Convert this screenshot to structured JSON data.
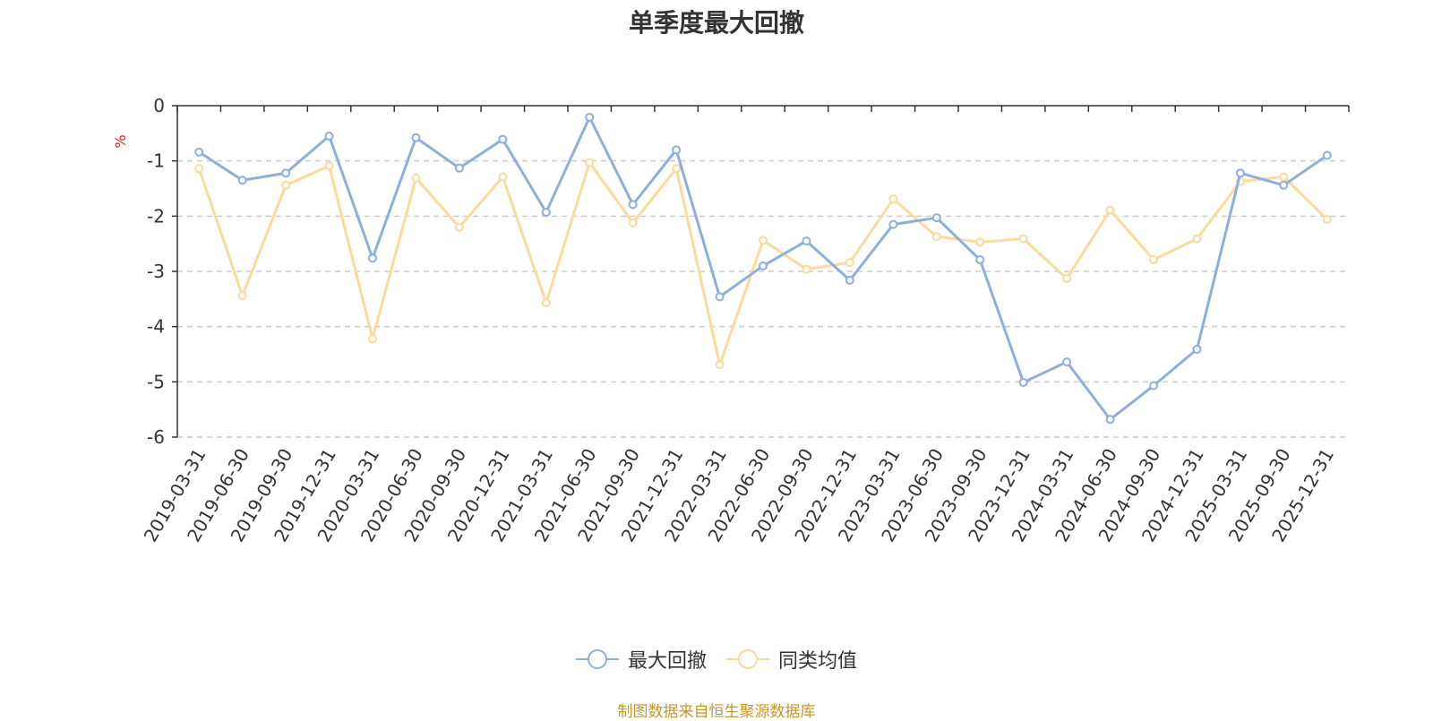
{
  "chart_data": {
    "type": "line",
    "title": "单季度最大回撤",
    "ylabel": "%",
    "ylim": [
      -6,
      0
    ],
    "yticks": [
      0,
      -1,
      -2,
      -3,
      -4,
      -5,
      -6
    ],
    "grid": true,
    "legend_position": "bottom-center",
    "categories": [
      "2019-03-31",
      "2019-06-30",
      "2019-09-30",
      "2019-12-31",
      "2020-03-31",
      "2020-06-30",
      "2020-09-30",
      "2020-12-31",
      "2021-03-31",
      "2021-06-30",
      "2021-09-30",
      "2021-12-31",
      "2022-03-31",
      "2022-06-30",
      "2022-09-30",
      "2022-12-31",
      "2023-03-31",
      "2023-06-30",
      "2023-09-30",
      "2023-12-31",
      "2024-03-31",
      "2024-06-30",
      "2024-09-30",
      "2024-12-31",
      "2025-03-31",
      "2025-09-30",
      "2025-12-31"
    ],
    "series": [
      {
        "name": "最大回撤",
        "color": "#8eaedb",
        "values": [
          -0.84,
          -1.35,
          -1.22,
          -0.55,
          -2.76,
          -0.58,
          -1.13,
          -0.61,
          -1.93,
          -0.21,
          -1.79,
          -0.8,
          -3.46,
          -2.9,
          -2.45,
          -3.16,
          -2.15,
          -2.03,
          -2.79,
          -5.01,
          -4.64,
          -5.68,
          -5.07,
          -4.41,
          -1.22,
          -1.44,
          -0.9
        ]
      },
      {
        "name": "同类均值",
        "color": "#fbdb9b",
        "values": [
          -1.14,
          -3.44,
          -1.44,
          -1.09,
          -4.22,
          -1.31,
          -2.2,
          -1.29,
          -3.57,
          -1.03,
          -2.12,
          -1.14,
          -4.69,
          -2.44,
          -2.96,
          -2.84,
          -1.69,
          -2.37,
          -2.47,
          -2.41,
          -3.13,
          -1.89,
          -2.79,
          -2.41,
          -1.37,
          -1.29,
          -2.06
        ]
      }
    ]
  },
  "legend": {
    "items": [
      {
        "label": "最大回撤",
        "color": "#8eaedb",
        "icon": "circle-line-icon"
      },
      {
        "label": "同类均值",
        "color": "#fbdb9b",
        "icon": "circle-line-icon"
      }
    ]
  },
  "source_note": "制图数据来自恒生聚源数据库"
}
